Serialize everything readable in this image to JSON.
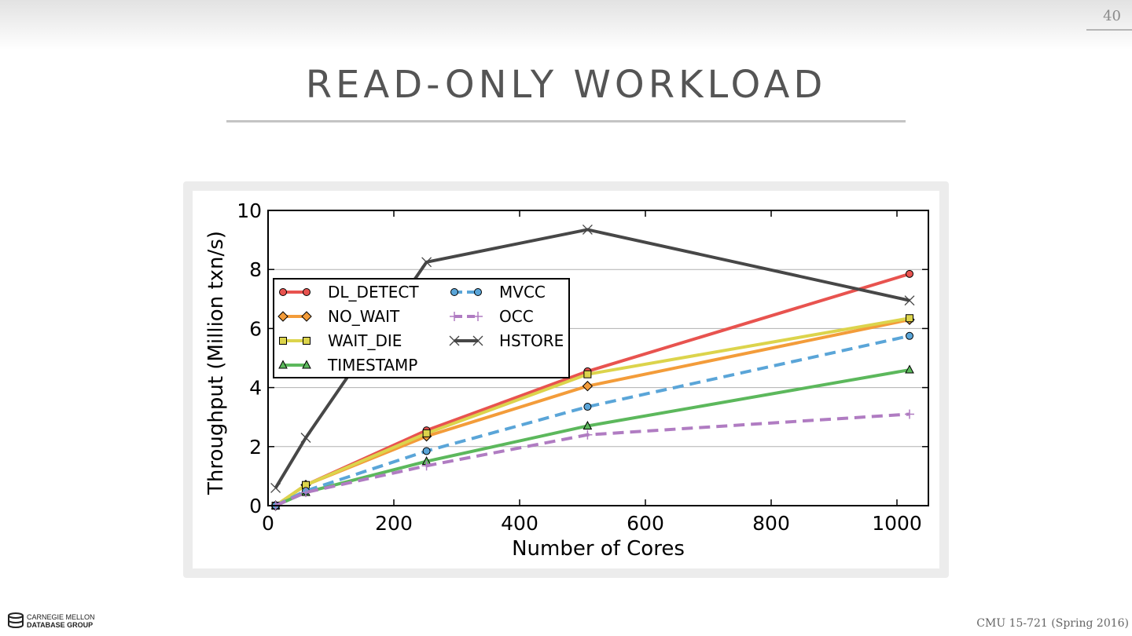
{
  "slide": {
    "page_number": "40",
    "title": "READ-ONLY WORKLOAD",
    "footer": "CMU 15-721 (Spring 2016)",
    "logo_line1": "CARNEGIE MELLON",
    "logo_line2": "DATABASE GROUP"
  },
  "chart_data": {
    "type": "line",
    "xlabel": "Number of Cores",
    "ylabel": "Throughput (Million txn/s)",
    "xlim": [
      0,
      1050
    ],
    "ylim": [
      0,
      10
    ],
    "xticks": [
      0,
      200,
      400,
      600,
      800,
      1000
    ],
    "yticks": [
      0,
      2,
      4,
      6,
      8,
      10
    ],
    "grid": "horizontal",
    "legend_placement": "upper-left",
    "x": [
      12,
      60,
      252,
      508,
      1020
    ],
    "series": [
      {
        "name": "DL_DETECT",
        "values": [
          0.0,
          0.7,
          2.55,
          4.55,
          7.85
        ],
        "color": "#e8534f",
        "marker": "circle",
        "dash": "solid"
      },
      {
        "name": "NO_WAIT",
        "values": [
          0.0,
          0.7,
          2.35,
          4.05,
          6.3
        ],
        "color": "#f39c3a",
        "marker": "diamond",
        "dash": "solid"
      },
      {
        "name": "WAIT_DIE",
        "values": [
          0.0,
          0.7,
          2.45,
          4.45,
          6.35
        ],
        "color": "#dcd44c",
        "marker": "square",
        "dash": "solid"
      },
      {
        "name": "TIMESTAMP",
        "values": [
          0.0,
          0.45,
          1.5,
          2.7,
          4.6
        ],
        "color": "#5cb85c",
        "marker": "triangle",
        "dash": "solid"
      },
      {
        "name": "MVCC",
        "values": [
          0.0,
          0.5,
          1.85,
          3.35,
          5.75
        ],
        "color": "#5aa5d8",
        "marker": "circle",
        "dash": "dashed"
      },
      {
        "name": "OCC",
        "values": [
          0.0,
          0.45,
          1.35,
          2.4,
          3.1
        ],
        "color": "#b07cc2",
        "marker": "plus",
        "dash": "dashed"
      },
      {
        "name": "HSTORE",
        "values": [
          0.6,
          2.3,
          8.25,
          9.35,
          6.95
        ],
        "color": "#474747",
        "marker": "x",
        "dash": "solid"
      }
    ]
  }
}
